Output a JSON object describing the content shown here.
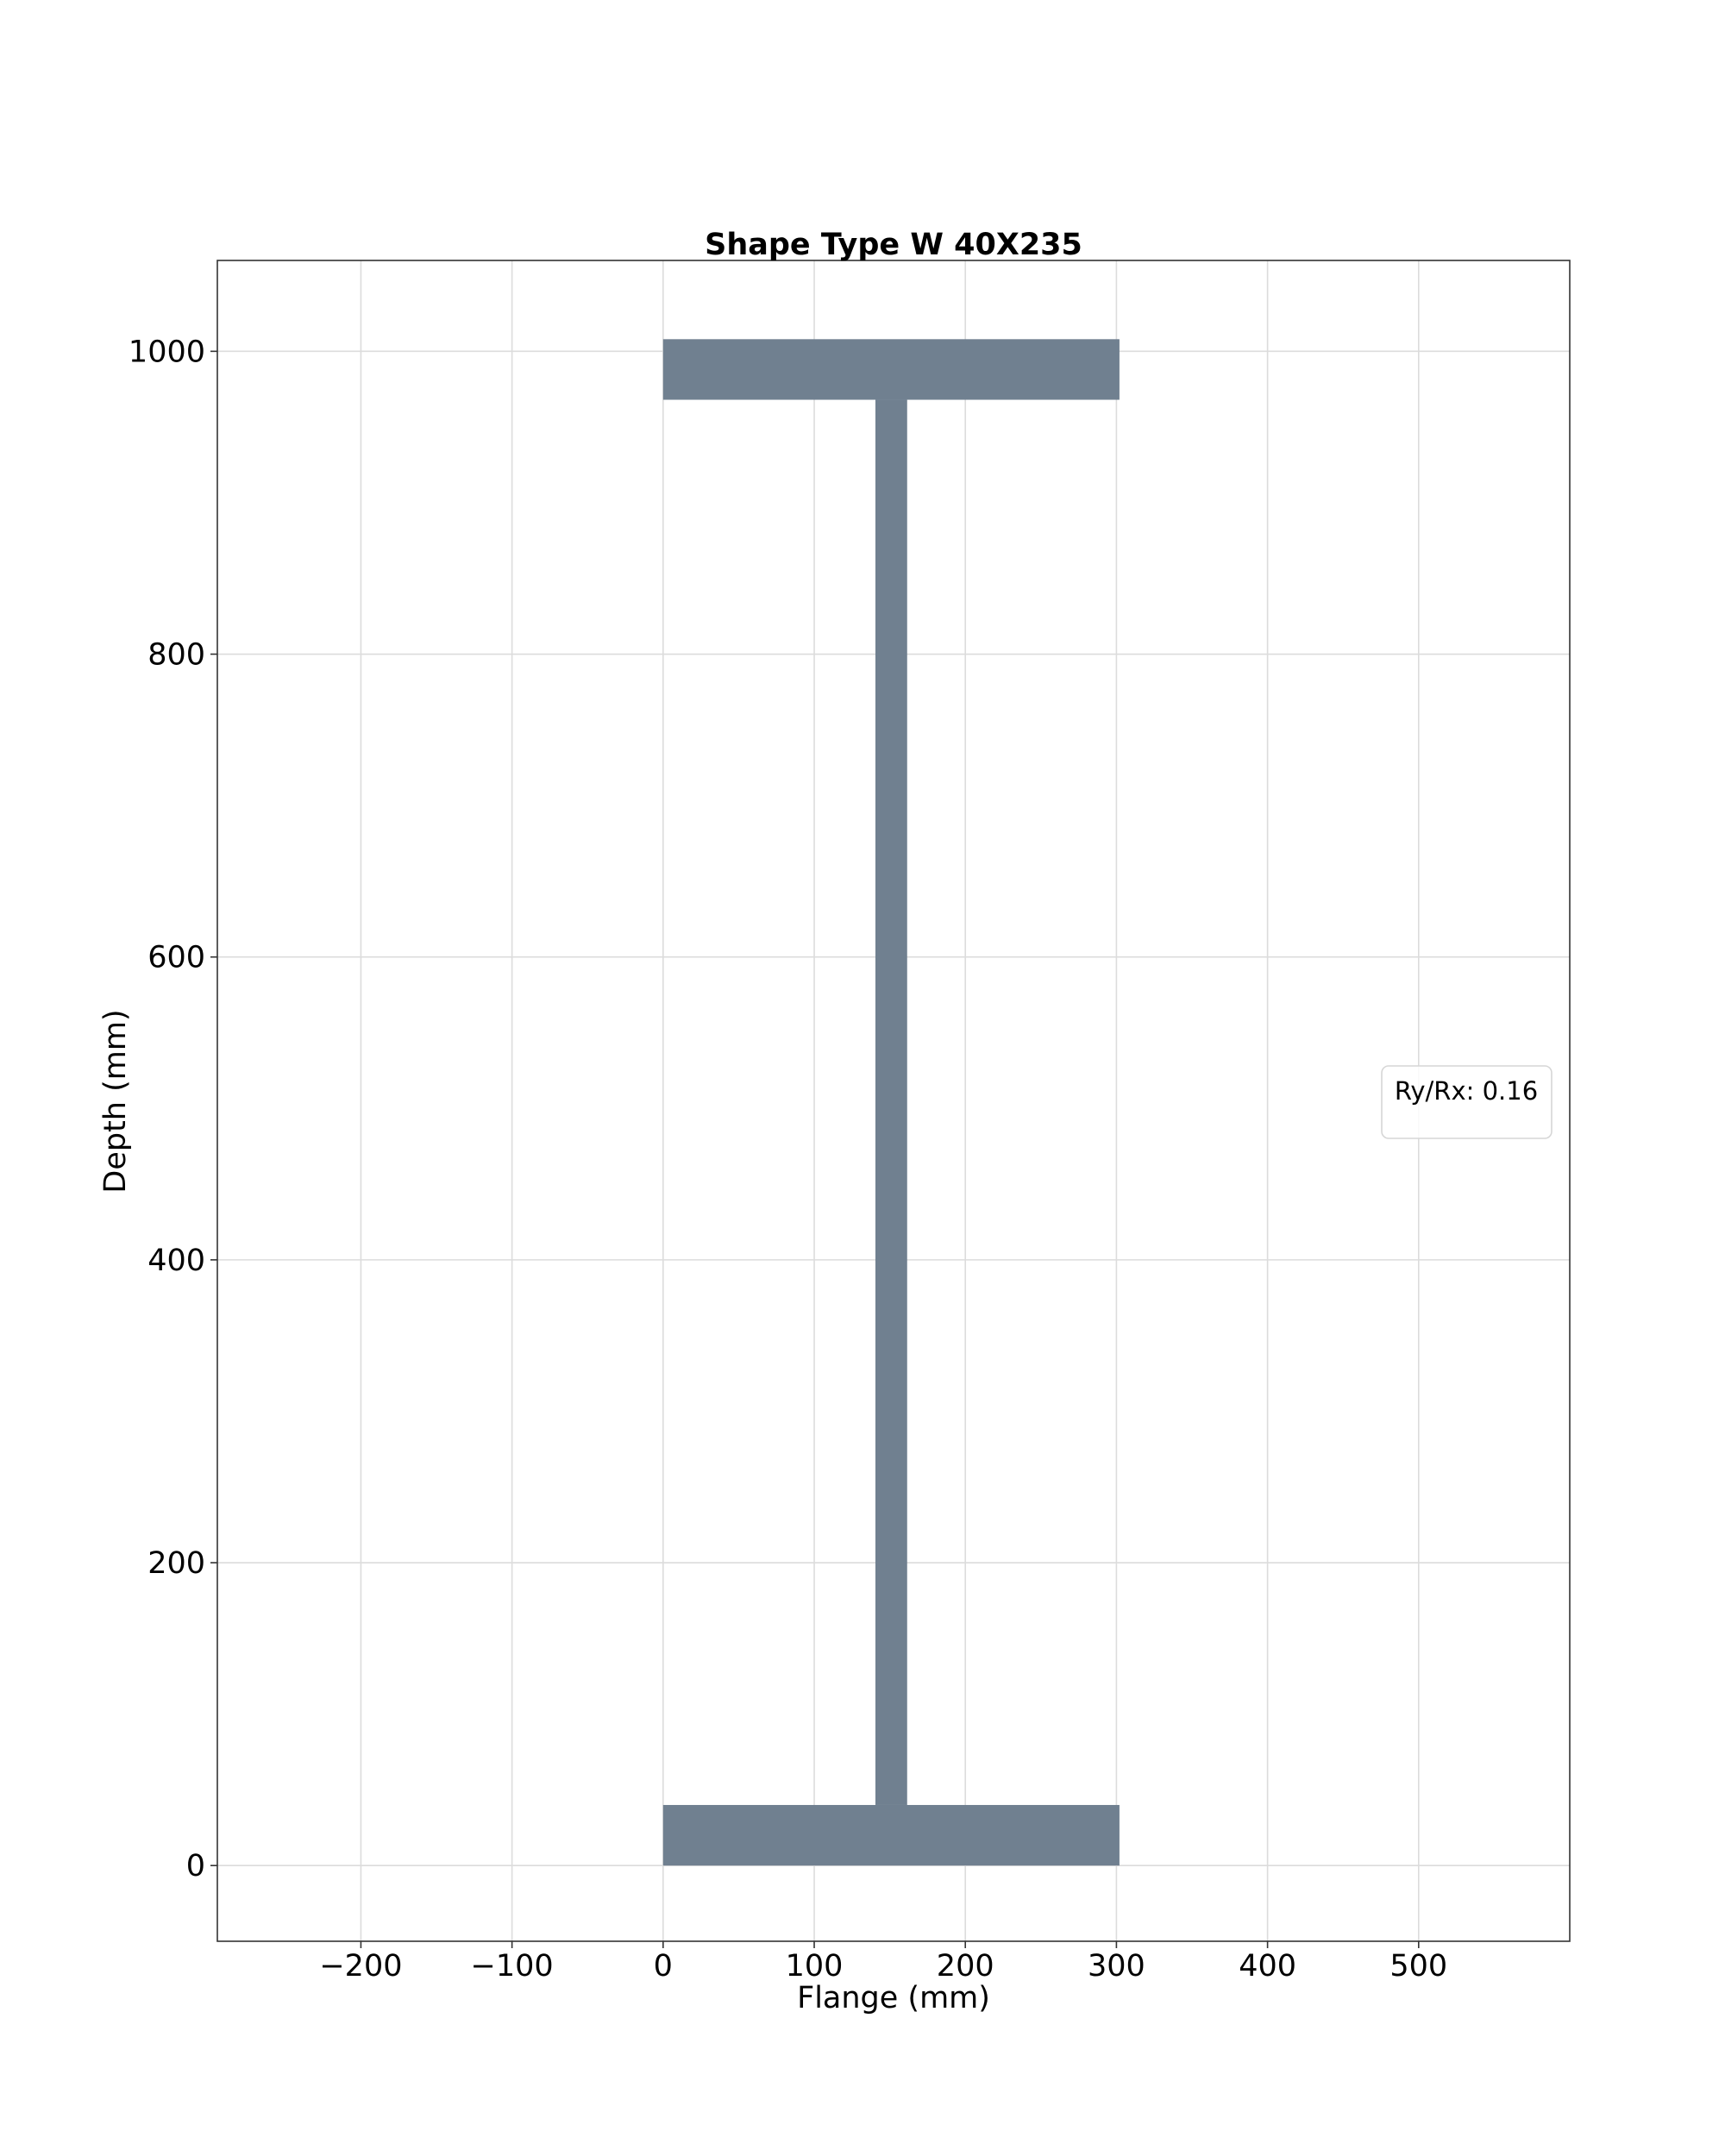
{
  "chart_data": {
    "type": "area",
    "title": "Shape Type W 40X235",
    "xlabel": "Flange (mm)",
    "ylabel": "Depth (mm)",
    "xlim": [
      -295,
      600
    ],
    "ylim": [
      -50,
      1060
    ],
    "xticks": [
      -200,
      -100,
      0,
      100,
      200,
      300,
      400,
      500
    ],
    "xtick_labels": [
      "−200",
      "−100",
      "0",
      "100",
      "200",
      "300",
      "400",
      "500"
    ],
    "yticks": [
      0,
      200,
      400,
      600,
      800,
      1000
    ],
    "ytick_labels": [
      "0",
      "200",
      "400",
      "600",
      "800",
      "1000"
    ],
    "grid": true,
    "fill_color": "#708090",
    "shape": {
      "name": "W 40X235",
      "depth": 1008,
      "flange_width": 302,
      "flange_thickness": 40,
      "web_thickness": 21,
      "web_center": 151
    },
    "section_parts": [
      {
        "part": "bottom-flange",
        "x": [
          0,
          302
        ],
        "y": [
          0,
          40
        ]
      },
      {
        "part": "web",
        "x": [
          140.5,
          161.5
        ],
        "y": [
          40,
          968
        ]
      },
      {
        "part": "top-flange",
        "x": [
          0,
          302
        ],
        "y": [
          968,
          1008
        ]
      }
    ],
    "legend": {
      "location": "center-right",
      "text": "Ry/Rx: 0.16"
    }
  }
}
